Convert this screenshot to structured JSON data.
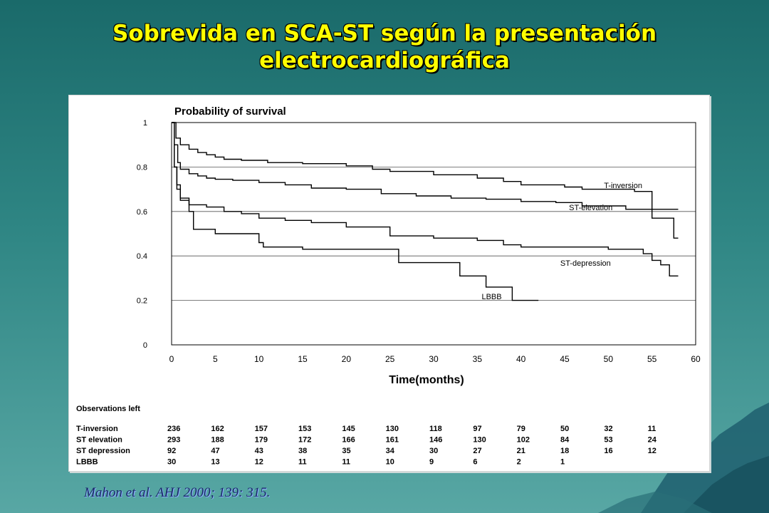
{
  "slide": {
    "title_line1": "Sobrevida en SCA-ST según la presentación",
    "title_line2": "electrocardiográfica",
    "citation": "Mahon et al. AHJ 2000; 139: 315."
  },
  "colors": {
    "background": "#2f8684",
    "title": "#ffff00",
    "citation": "#1a2a6a",
    "plot_line": "#000000"
  },
  "chart_data": {
    "type": "line",
    "step": true,
    "title": "Probability of survival",
    "xlabel": "Time(months)",
    "ylabel": "",
    "xlim": [
      0,
      60
    ],
    "ylim": [
      0,
      1
    ],
    "x_ticks": [
      0,
      5,
      10,
      15,
      20,
      25,
      30,
      35,
      40,
      45,
      50,
      55,
      60
    ],
    "y_ticks": [
      0,
      0.2,
      0.4,
      0.6,
      0.8,
      1
    ],
    "y_tick_labels": [
      "0",
      "0.2",
      "0.4",
      "0.6",
      "0.8",
      "1"
    ],
    "grid": "horizontal",
    "series": [
      {
        "name": "T-inversion",
        "x": [
          0,
          0.5,
          1,
          2,
          3,
          4,
          5,
          6,
          8,
          11,
          15,
          20,
          23,
          25,
          30,
          35,
          38,
          40,
          45,
          47,
          50,
          53,
          55,
          57.5,
          58
        ],
        "y": [
          1,
          0.93,
          0.9,
          0.88,
          0.865,
          0.855,
          0.845,
          0.835,
          0.83,
          0.82,
          0.815,
          0.805,
          0.79,
          0.78,
          0.765,
          0.75,
          0.735,
          0.72,
          0.71,
          0.7,
          0.7,
          0.69,
          0.57,
          0.48,
          0.48
        ]
      },
      {
        "name": "ST-elevation",
        "x": [
          0,
          0.3,
          0.7,
          1,
          2,
          3,
          4,
          5,
          7,
          10,
          13,
          16,
          20,
          24,
          28,
          32,
          36,
          40,
          44,
          47,
          49,
          52,
          55,
          57,
          58
        ],
        "y": [
          1,
          0.9,
          0.82,
          0.79,
          0.77,
          0.76,
          0.75,
          0.745,
          0.74,
          0.73,
          0.72,
          0.705,
          0.7,
          0.68,
          0.67,
          0.66,
          0.655,
          0.645,
          0.64,
          0.625,
          0.625,
          0.61,
          0.61,
          0.61,
          0.61
        ]
      },
      {
        "name": "ST-depression",
        "x": [
          0,
          0.3,
          0.6,
          1,
          2,
          4,
          6,
          8,
          10,
          13,
          16,
          20,
          25,
          30,
          35,
          38,
          40,
          45,
          50,
          54,
          55,
          56,
          57,
          58
        ],
        "y": [
          1,
          0.8,
          0.7,
          0.65,
          0.63,
          0.62,
          0.6,
          0.59,
          0.57,
          0.56,
          0.55,
          0.53,
          0.49,
          0.48,
          0.47,
          0.45,
          0.44,
          0.44,
          0.43,
          0.41,
          0.38,
          0.36,
          0.31,
          0.31
        ]
      },
      {
        "name": "LBBB",
        "x": [
          0,
          0.3,
          0.6,
          1,
          2,
          2.5,
          5,
          10,
          10.5,
          15,
          22,
          26,
          28,
          33,
          34,
          36,
          39,
          41,
          42
        ],
        "y": [
          1,
          0.8,
          0.72,
          0.66,
          0.6,
          0.52,
          0.5,
          0.46,
          0.44,
          0.43,
          0.43,
          0.37,
          0.37,
          0.31,
          0.31,
          0.26,
          0.2,
          0.2,
          0.2
        ]
      }
    ],
    "annotations": [
      {
        "text": "T-inversion",
        "x": 49.5,
        "y": 0.705
      },
      {
        "text": "ST-elevation",
        "x": 45.5,
        "y": 0.605
      },
      {
        "text": "ST-depression",
        "x": 44.5,
        "y": 0.355
      },
      {
        "text": "LBBB",
        "x": 35.5,
        "y": 0.205
      }
    ],
    "observations_table": {
      "title": "Observations left",
      "times": [
        0,
        5,
        10,
        15,
        20,
        25,
        30,
        35,
        40,
        45,
        50,
        55
      ],
      "rows": [
        {
          "label": "T-inversion",
          "values": [
            "236",
            "162",
            "157",
            "153",
            "145",
            "130",
            "118",
            "97",
            "79",
            "50",
            "32",
            "11"
          ]
        },
        {
          "label": "ST elevation",
          "values": [
            "293",
            "188",
            "179",
            "172",
            "166",
            "161",
            "146",
            "130",
            "102",
            "84",
            "53",
            "24"
          ]
        },
        {
          "label": "ST depression",
          "values": [
            "92",
            "47",
            "43",
            "38",
            "35",
            "34",
            "30",
            "27",
            "21",
            "18",
            "16",
            "12"
          ]
        },
        {
          "label": "LBBB",
          "values": [
            "30",
            "13",
            "12",
            "11",
            "11",
            "10",
            "9",
            "6",
            "2",
            "1",
            "",
            ""
          ]
        }
      ]
    }
  }
}
